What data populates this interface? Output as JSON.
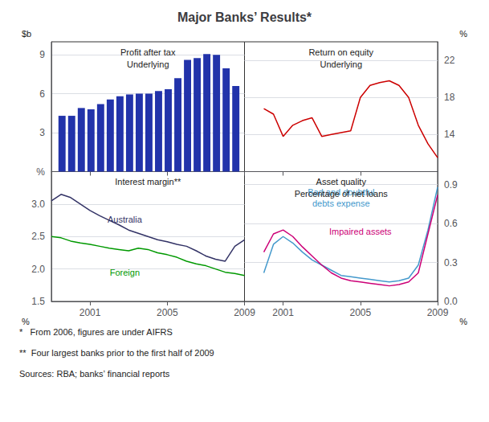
{
  "title": "Major Banks’ Results*",
  "annotations": [
    "*   From 2006, figures are under AIFRS",
    "**  Four largest banks prior to the first half of 2009",
    "Sources: RBA; banks’ financial reports"
  ],
  "chart_data": [
    {
      "type": "bar",
      "title": "Profit after tax",
      "subtitle": "Underlying",
      "annotations": [
        "$b"
      ],
      "x": [
        1999.55,
        2000.05,
        2000.55,
        2001.05,
        2001.55,
        2002.05,
        2002.55,
        2003.05,
        2003.55,
        2004.05,
        2004.55,
        2005.05,
        2005.55,
        2006.05,
        2006.55,
        2007.05,
        2007.55,
        2008.05,
        2008.55
      ],
      "values": [
        4.3,
        4.3,
        4.9,
        4.8,
        5.2,
        5.55,
        5.8,
        5.95,
        6.0,
        6.0,
        6.2,
        6.35,
        7.2,
        8.6,
        8.75,
        9.05,
        9.0,
        7.95,
        6.6
      ],
      "color": "#2233aa",
      "xlim": [
        1999,
        2009
      ],
      "xticks": [
        2001,
        2005,
        2009
      ],
      "ylim": [
        0,
        10
      ],
      "yticks": [
        {
          "value": 0,
          "label": "%"
        },
        3,
        6,
        9
      ],
      "grid": true,
      "tick_labels": "y"
    },
    {
      "type": "line",
      "title": "Return on equity",
      "subtitle": "Underlying",
      "annotations": [
        "%"
      ],
      "x": [
        2000,
        2000.5,
        2001,
        2001.5,
        2002,
        2002.5,
        2003,
        2003.5,
        2004,
        2004.5,
        2005,
        2005.5,
        2006,
        2006.5,
        2007,
        2007.5,
        2008,
        2008.5,
        2009
      ],
      "values": [
        16.8,
        16.2,
        13.8,
        15.0,
        15.5,
        15.8,
        13.8,
        14.0,
        14.2,
        14.4,
        18.0,
        19.3,
        19.6,
        19.8,
        19.3,
        18.0,
        15.0,
        13.0,
        11.5
      ],
      "color": "#cc0000",
      "xlim": [
        1999,
        2009
      ],
      "xticks": [
        2001,
        2005,
        2009
      ],
      "ylim": [
        10,
        24
      ],
      "yticks": [
        14,
        18,
        22
      ],
      "grid": true,
      "tick_labels": "y"
    },
    {
      "type": "line",
      "title": "Interest margin**",
      "annotations": [
        "%"
      ],
      "x": [
        1999,
        1999.5,
        2000,
        2000.5,
        2001,
        2001.5,
        2002,
        2002.5,
        2003,
        2003.5,
        2004,
        2004.5,
        2005,
        2005.5,
        2006,
        2006.5,
        2007,
        2007.5,
        2008,
        2008.5,
        2009
      ],
      "series": [
        {
          "name": "Australia",
          "color": "#333366",
          "values": [
            3.05,
            3.15,
            3.1,
            3.0,
            2.9,
            2.82,
            2.75,
            2.68,
            2.6,
            2.55,
            2.5,
            2.45,
            2.42,
            2.38,
            2.35,
            2.28,
            2.2,
            2.15,
            2.12,
            2.35,
            2.45
          ]
        },
        {
          "name": "Foreign",
          "color": "#009900",
          "values": [
            2.5,
            2.48,
            2.43,
            2.4,
            2.38,
            2.35,
            2.32,
            2.3,
            2.28,
            2.32,
            2.3,
            2.25,
            2.22,
            2.18,
            2.12,
            2.08,
            2.05,
            2.0,
            1.95,
            1.93,
            1.9
          ]
        }
      ],
      "xlim": [
        1999,
        2009
      ],
      "xticks": [
        2001,
        2005,
        2009
      ],
      "ylim": [
        1.5,
        3.5
      ],
      "yticks": [
        1.5,
        {
          "value": 2,
          "label": "2.0"
        },
        2.5,
        {
          "value": 3,
          "label": "3.0"
        }
      ],
      "grid": true
    },
    {
      "type": "line",
      "title": "Asset quality",
      "subtitle": "Percentage of net loans",
      "annotations": [
        "%"
      ],
      "x": [
        2000,
        2000.5,
        2001,
        2001.5,
        2002,
        2002.5,
        2003,
        2003.5,
        2004,
        2004.5,
        2005,
        2005.5,
        2006,
        2006.5,
        2007,
        2007.5,
        2008,
        2008.5,
        2009
      ],
      "series": [
        {
          "name": "Bad and doubtful\ndebts expense",
          "color": "#4499cc",
          "values": [
            0.22,
            0.44,
            0.5,
            0.45,
            0.38,
            0.32,
            0.28,
            0.24,
            0.2,
            0.19,
            0.18,
            0.17,
            0.16,
            0.15,
            0.16,
            0.18,
            0.28,
            0.55,
            0.88
          ]
        },
        {
          "name": "Impaired assets",
          "color": "#cc0077",
          "values": [
            0.38,
            0.52,
            0.55,
            0.5,
            0.42,
            0.35,
            0.28,
            0.22,
            0.18,
            0.16,
            0.15,
            0.14,
            0.13,
            0.12,
            0.13,
            0.15,
            0.22,
            0.52,
            0.82
          ]
        }
      ],
      "xlim": [
        1999,
        2009
      ],
      "xticks": [
        2001,
        2005,
        2009
      ],
      "ylim": [
        0,
        1
      ],
      "yticks": [
        {
          "value": 0,
          "label": "0.0"
        },
        0.3,
        0.6,
        0.9
      ],
      "grid": true
    }
  ]
}
